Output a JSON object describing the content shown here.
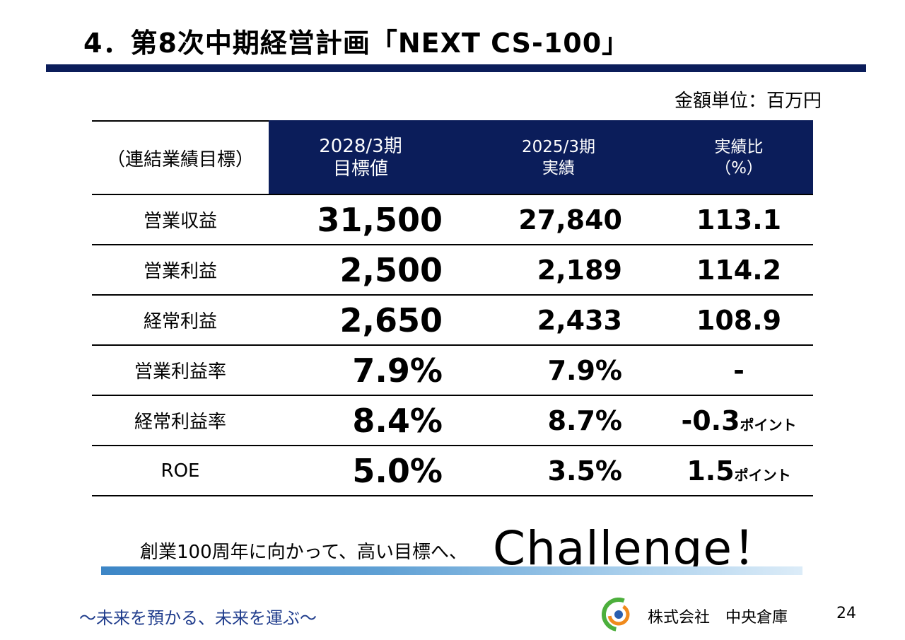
{
  "header": {
    "title": "4．第8次中期経営計画「NEXT CS-100」",
    "unit": "金額単位：百万円"
  },
  "table": {
    "corner": "（連結業績目標）",
    "columns": [
      {
        "line1": "2028/3期",
        "line2": "目標値"
      },
      {
        "line1": "2025/3期",
        "line2": "実績"
      },
      {
        "line1": "実績比",
        "line2": "（%）"
      }
    ],
    "rows": [
      {
        "label": "営業収益",
        "target": "31,500",
        "actual": "27,840",
        "ratio": "113.1",
        "suffix": ""
      },
      {
        "label": "営業利益",
        "target": "2,500",
        "actual": "2,189",
        "ratio": "114.2",
        "suffix": ""
      },
      {
        "label": "経常利益",
        "target": "2,650",
        "actual": "2,433",
        "ratio": "108.9",
        "suffix": ""
      },
      {
        "label": "営業利益率",
        "target": "7.9%",
        "actual": "7.9%",
        "ratio": "-",
        "suffix": ""
      },
      {
        "label": "経常利益率",
        "target": "8.4%",
        "actual": "8.7%",
        "ratio": "-0.3",
        "suffix": "ポイント"
      },
      {
        "label": "ROE",
        "target": "5.0%",
        "actual": "3.5%",
        "ratio": "1.5",
        "suffix": "ポイント"
      }
    ]
  },
  "slogan": {
    "text": "創業100周年に向かって、高い目標へ、",
    "big": "Challenge！"
  },
  "footer": {
    "slogan": "～未来を預かる、未来を運ぶ～",
    "company": "株式会社　中央倉庫",
    "page": "24"
  },
  "colors": {
    "navy": "#0b1d5a",
    "footer_text": "#1f3c8c",
    "logo_green": "#4caf3c",
    "logo_orange": "#f08a1c",
    "logo_blue": "#2a5fb0"
  }
}
